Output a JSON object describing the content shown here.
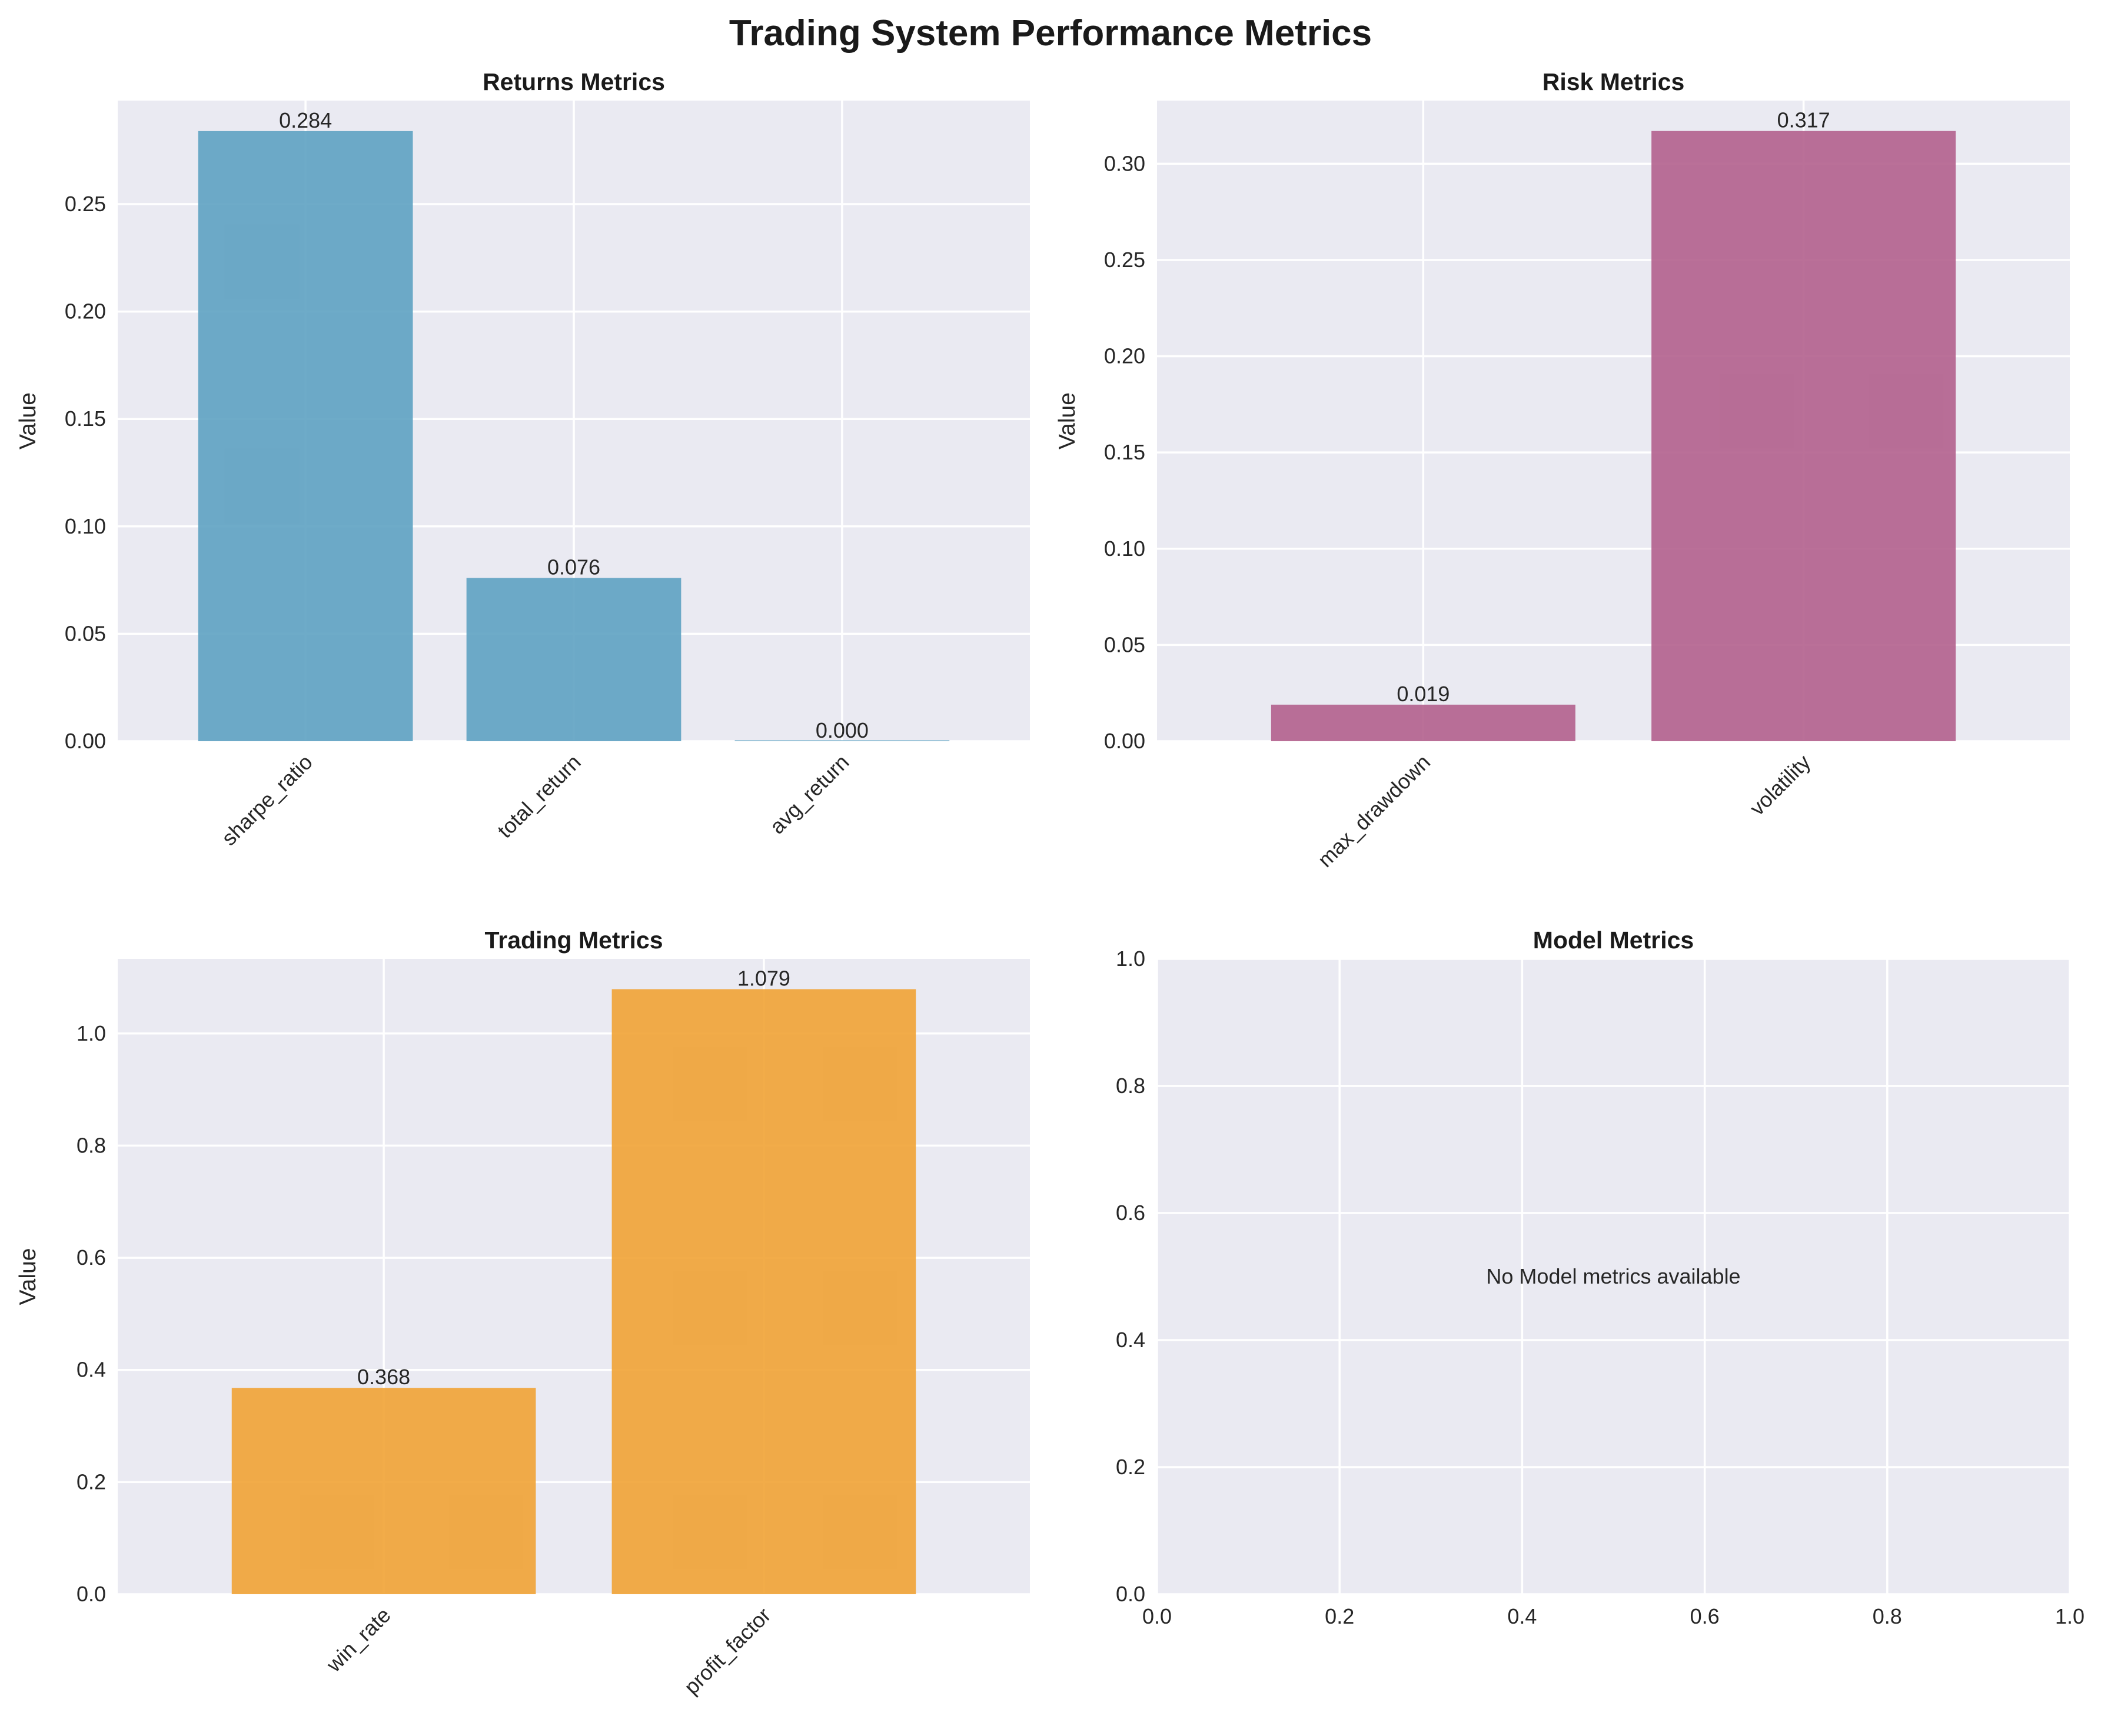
{
  "suptitle": "Trading System Performance Metrics",
  "chart_data": [
    {
      "type": "bar",
      "title": "Returns Metrics",
      "ylabel": "Value",
      "xlabel": "",
      "categories": [
        "sharpe_ratio",
        "total_return",
        "avg_return"
      ],
      "values": [
        0.284,
        0.076,
        0.0
      ],
      "data_labels": [
        "0.284",
        "0.076",
        "0.000"
      ],
      "ylim": [
        0,
        0.2982
      ],
      "yticks": [
        0.0,
        0.05,
        0.1,
        0.15,
        0.2,
        0.25
      ],
      "ytick_labels": [
        "0.00",
        "0.05",
        "0.10",
        "0.15",
        "0.20",
        "0.25"
      ],
      "color": "#5a9fc0",
      "grid": true
    },
    {
      "type": "bar",
      "title": "Risk Metrics",
      "ylabel": "Value",
      "xlabel": "",
      "categories": [
        "max_drawdown",
        "volatility"
      ],
      "values": [
        0.019,
        0.317
      ],
      "data_labels": [
        "0.019",
        "0.317"
      ],
      "ylim": [
        0,
        0.3328
      ],
      "yticks": [
        0.0,
        0.05,
        0.1,
        0.15,
        0.2,
        0.25,
        0.3
      ],
      "ytick_labels": [
        "0.00",
        "0.05",
        "0.10",
        "0.15",
        "0.20",
        "0.25",
        "0.30"
      ],
      "color": "#b05c8a",
      "grid": true
    },
    {
      "type": "bar",
      "title": "Trading Metrics",
      "ylabel": "Value",
      "xlabel": "",
      "categories": [
        "win_rate",
        "profit_factor"
      ],
      "values": [
        0.368,
        1.079
      ],
      "data_labels": [
        "0.368",
        "1.079"
      ],
      "ylim": [
        0,
        1.133
      ],
      "yticks": [
        0.0,
        0.2,
        0.4,
        0.6,
        0.8,
        1.0
      ],
      "ytick_labels": [
        "0.0",
        "0.2",
        "0.4",
        "0.6",
        "0.8",
        "1.0"
      ],
      "color": "#f0a030",
      "grid": true
    },
    {
      "type": "empty",
      "title": "Model Metrics",
      "note": "No Model metrics available",
      "xlim": [
        0,
        1
      ],
      "ylim": [
        0,
        1
      ],
      "xticks": [
        0.0,
        0.2,
        0.4,
        0.6,
        0.8,
        1.0
      ],
      "xtick_labels": [
        "0.0",
        "0.2",
        "0.4",
        "0.6",
        "0.8",
        "1.0"
      ],
      "yticks": [
        0.0,
        0.2,
        0.4,
        0.6,
        0.8,
        1.0
      ],
      "ytick_labels": [
        "0.0",
        "0.2",
        "0.4",
        "0.6",
        "0.8",
        "1.0"
      ],
      "grid": true
    }
  ]
}
